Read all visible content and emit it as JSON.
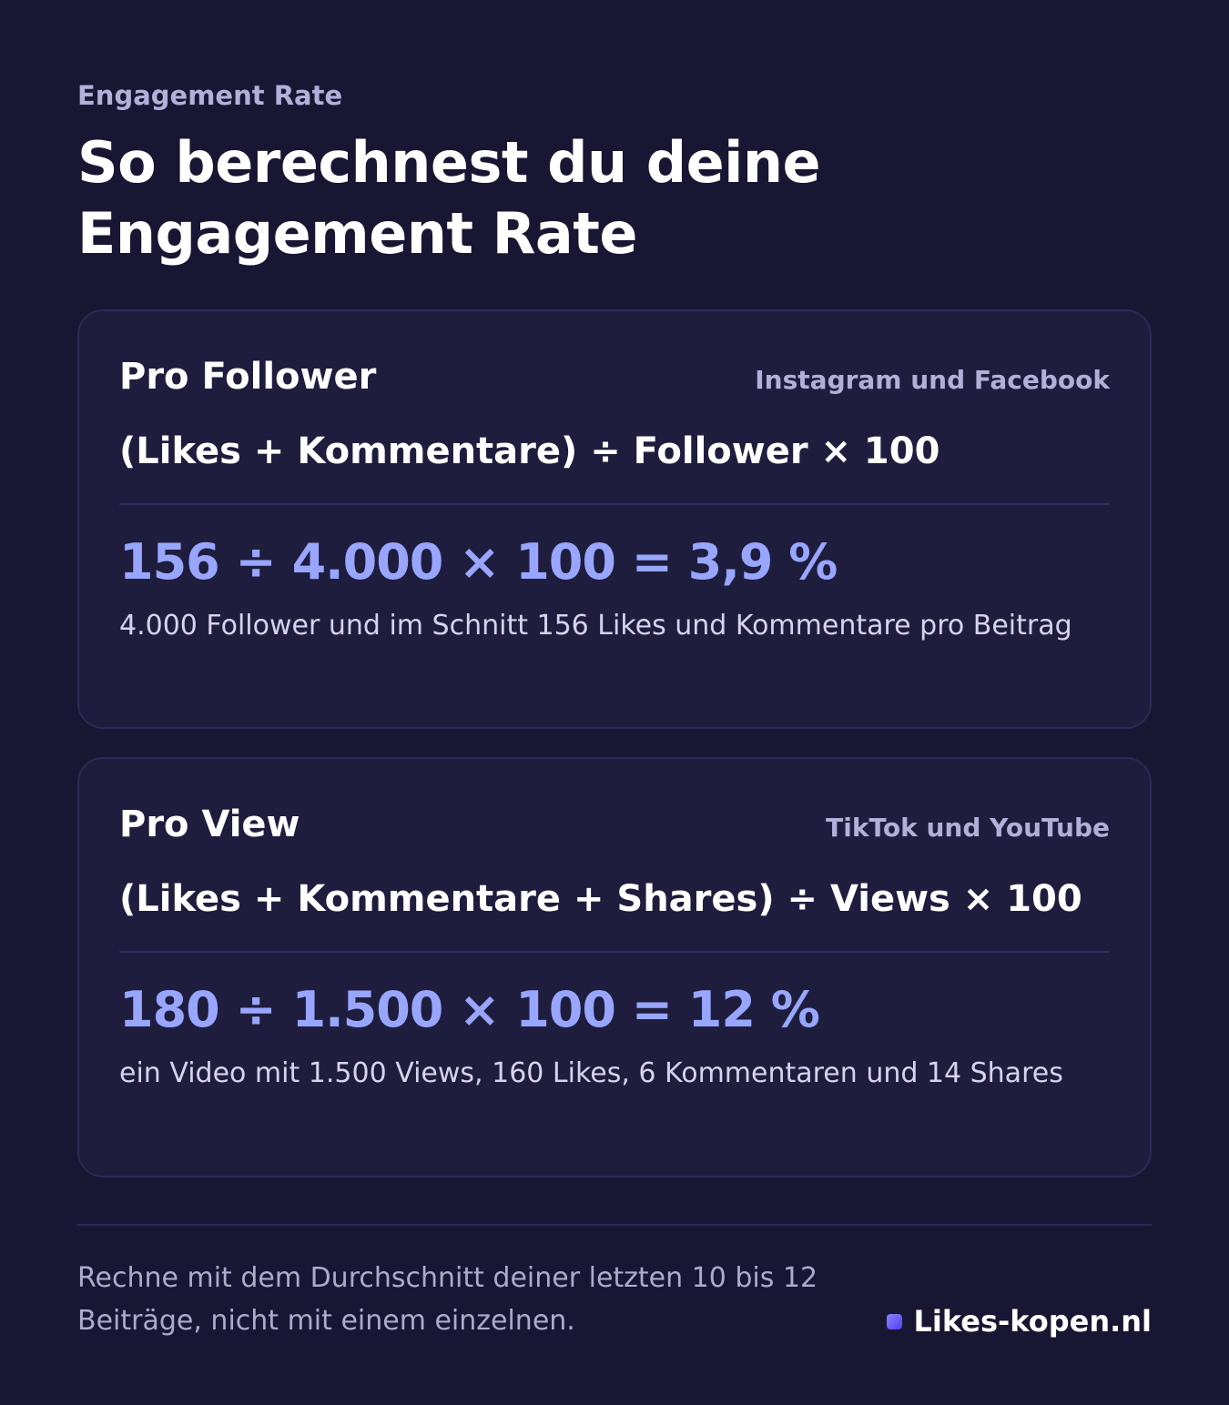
{
  "header": {
    "eyebrow": "Engagement Rate",
    "title": "So berechnest du deine Engagement Rate"
  },
  "cards": [
    {
      "title": "Pro Follower",
      "platforms": "Instagram und Facebook",
      "formula": "(Likes + Kommentare) ÷ Follower × 100",
      "example_calc": "156 ÷ 4.000 × 100 = 3,9 %",
      "example_note": "4.000 Follower und im Schnitt 156 Likes und Kommentare pro Beitrag"
    },
    {
      "title": "Pro View",
      "platforms": "TikTok und YouTube",
      "formula": "(Likes + Kommentare + Shares) ÷ Views × 100",
      "example_calc": "180 ÷ 1.500 × 100 = 12 %",
      "example_note": "ein Video mit 1.500 Views, 160 Likes, 6 Kommentaren und 14 Shares"
    }
  ],
  "footer": {
    "tip": "Rechne mit dem Durchschnitt deiner letzten 10 bis 12 Beiträge, nicht mit einem einzelnen.",
    "brand": "Likes-kopen.nl"
  },
  "colors": {
    "background": "#181632",
    "card": "#1f1d3e",
    "accent": "#98a6ff",
    "muted": "#b4afd9"
  }
}
